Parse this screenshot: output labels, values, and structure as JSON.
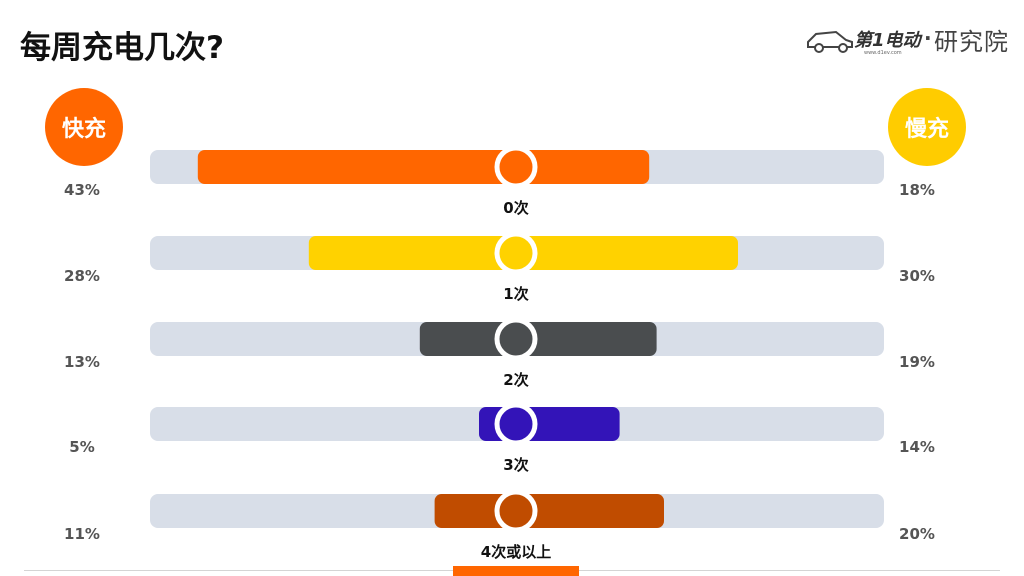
{
  "title": "每周充电几次?",
  "brand": {
    "logo_text": "第1电动",
    "logo_small": "www.d1ev.com",
    "separator": "·",
    "suffix": "研究院",
    "car_icon": "car-outline-icon",
    "color": "#444444",
    "accent": "#ff6600"
  },
  "legend": {
    "left": {
      "label": "快充",
      "color": "#ff6600"
    },
    "right": {
      "label": "慢充",
      "color": "#ffcc00"
    }
  },
  "chart_data": {
    "type": "bar",
    "subtype": "diverging-horizontal",
    "title": "每周充电几次?",
    "categories": [
      "0次",
      "1次",
      "2次",
      "3次",
      "4次或以上"
    ],
    "series": [
      {
        "name": "快充",
        "values": [
          43,
          28,
          13,
          5,
          11
        ],
        "labels": [
          "43%",
          "28%",
          "13%",
          "5%",
          "11%"
        ]
      },
      {
        "name": "慢充",
        "values": [
          18,
          30,
          19,
          14,
          20
        ],
        "labels": [
          "18%",
          "30%",
          "19%",
          "14%",
          "20%"
        ]
      }
    ],
    "unit": "%",
    "bar_colors": [
      "#ff6600",
      "#ffd200",
      "#4a4d4f",
      "#3314b8",
      "#c04c00"
    ],
    "track_color": "#d8dee8",
    "grid": false,
    "legend_position": "top-corners"
  }
}
